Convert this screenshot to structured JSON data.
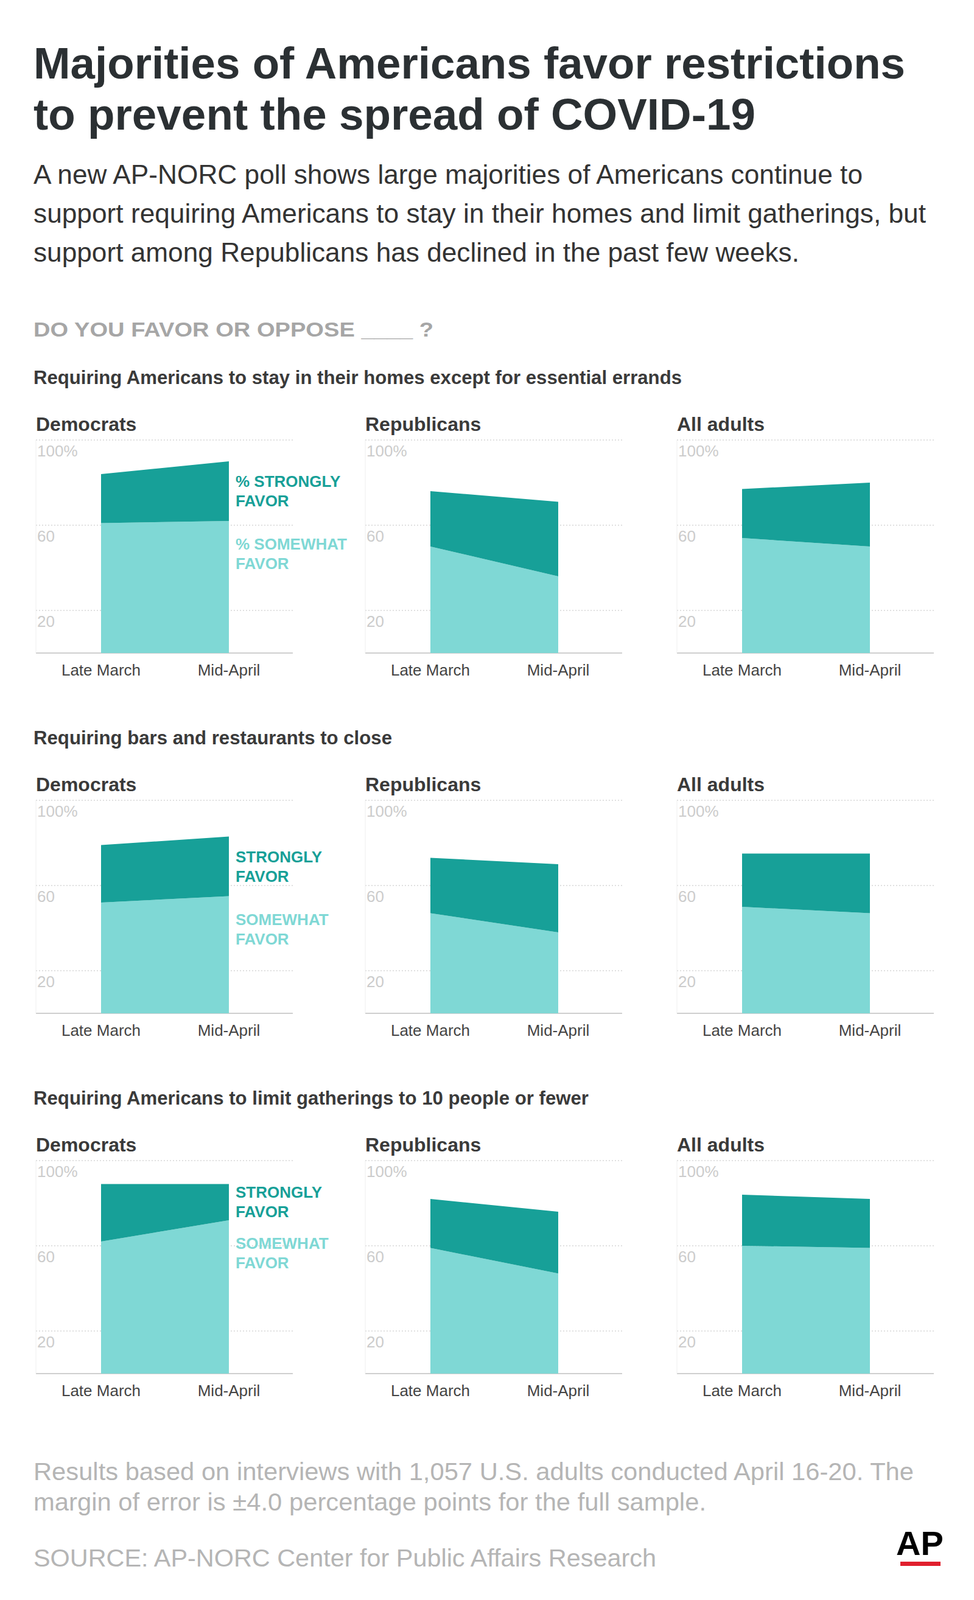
{
  "title": [
    "Majorities of Americans favor restrictions",
    "to prevent the spread of COVID-19"
  ],
  "subtitle": [
    "A new AP-NORC poll shows large majorities of Americans continue to",
    "support requiring Americans to stay in their homes and limit gatherings, but",
    "support among Republicans has declined in the past few weeks."
  ],
  "question": "DO YOU FAVOR OR OPPOSE ____ ?",
  "sections": [
    "Requiring Americans to stay in their homes except for essential errands",
    "Requiring bars and restaurants to close",
    "Requiring Americans to limit gatherings to 10 people or fewer"
  ],
  "footnote": [
    "Results based on interviews with 1,057 U.S. adults conducted April 16-20. The",
    "margin of error is ±4.0 percentage points for the full sample."
  ],
  "source": "SOURCE: AP-NORC Center for Public Affairs Research",
  "logo": "AP",
  "chart_data": [
    {
      "type": "area",
      "stacked": true,
      "title": "Democrats",
      "categories": [
        "Late March",
        "Mid-April"
      ],
      "series": [
        {
          "name": "% SOMEWHAT FAVOR",
          "color": "#7fd8d5",
          "values": [
            61,
            62
          ]
        },
        {
          "name": "% STRONGLY FAVOR",
          "color": "#17a098",
          "values": [
            23,
            28
          ]
        }
      ],
      "ylim": [
        0,
        100
      ],
      "yticks": [
        20,
        60,
        {
          "value": 100,
          "label": "100%"
        }
      ],
      "grid": true,
      "legend": "right"
    },
    {
      "type": "area",
      "stacked": true,
      "title": "Republicans",
      "categories": [
        "Late March",
        "Mid-April"
      ],
      "series": [
        {
          "color": "#7fd8d5",
          "values": [
            50,
            36
          ]
        },
        {
          "color": "#17a098",
          "values": [
            26,
            35
          ]
        }
      ],
      "ylim": [
        0,
        100
      ],
      "yticks": [
        20,
        60,
        {
          "value": 100,
          "label": "100%"
        }
      ],
      "grid": true
    },
    {
      "type": "area",
      "stacked": true,
      "title": "All adults",
      "categories": [
        "Late March",
        "Mid-April"
      ],
      "series": [
        {
          "color": "#7fd8d5",
          "values": [
            54,
            50
          ]
        },
        {
          "color": "#17a098",
          "values": [
            23,
            30
          ]
        }
      ],
      "ylim": [
        0,
        100
      ],
      "yticks": [
        20,
        60,
        {
          "value": 100,
          "label": "100%"
        }
      ],
      "grid": true
    },
    {
      "type": "area",
      "stacked": true,
      "title": "Democrats",
      "categories": [
        "Late March",
        "Mid-April"
      ],
      "series": [
        {
          "name": "SOMEWHAT FAVOR",
          "color": "#7fd8d5",
          "values": [
            52,
            55
          ]
        },
        {
          "name": "STRONGLY FAVOR",
          "color": "#17a098",
          "values": [
            27,
            28
          ]
        }
      ],
      "ylim": [
        0,
        100
      ],
      "yticks": [
        20,
        60,
        {
          "value": 100,
          "label": "100%"
        }
      ],
      "grid": true,
      "legend": "right"
    },
    {
      "type": "area",
      "stacked": true,
      "title": "Republicans",
      "categories": [
        "Late March",
        "Mid-April"
      ],
      "series": [
        {
          "color": "#7fd8d5",
          "values": [
            47,
            38
          ]
        },
        {
          "color": "#17a098",
          "values": [
            26,
            32
          ]
        }
      ],
      "ylim": [
        0,
        100
      ],
      "yticks": [
        20,
        60,
        {
          "value": 100,
          "label": "100%"
        }
      ],
      "grid": true
    },
    {
      "type": "area",
      "stacked": true,
      "title": "All adults",
      "categories": [
        "Late March",
        "Mid-April"
      ],
      "series": [
        {
          "color": "#7fd8d5",
          "values": [
            50,
            47
          ]
        },
        {
          "color": "#17a098",
          "values": [
            25,
            28
          ]
        }
      ],
      "ylim": [
        0,
        100
      ],
      "yticks": [
        20,
        60,
        {
          "value": 100,
          "label": "100%"
        }
      ],
      "grid": true
    },
    {
      "type": "area",
      "stacked": true,
      "title": "Democrats",
      "categories": [
        "Late March",
        "Mid-April"
      ],
      "series": [
        {
          "name": "SOMEWHAT FAVOR",
          "color": "#7fd8d5",
          "values": [
            62,
            72
          ]
        },
        {
          "name": "STRONGLY FAVOR",
          "color": "#17a098",
          "values": [
            27,
            17
          ]
        }
      ],
      "ylim": [
        0,
        100
      ],
      "yticks": [
        20,
        60,
        {
          "value": 100,
          "label": "100%"
        }
      ],
      "grid": true,
      "legend": "right"
    },
    {
      "type": "area",
      "stacked": true,
      "title": "Republicans",
      "categories": [
        "Late March",
        "Mid-April"
      ],
      "series": [
        {
          "color": "#7fd8d5",
          "values": [
            59,
            47
          ]
        },
        {
          "color": "#17a098",
          "values": [
            23,
            29
          ]
        }
      ],
      "ylim": [
        0,
        100
      ],
      "yticks": [
        20,
        60,
        {
          "value": 100,
          "label": "100%"
        }
      ],
      "grid": true
    },
    {
      "type": "area",
      "stacked": true,
      "title": "All adults",
      "categories": [
        "Late March",
        "Mid-April"
      ],
      "series": [
        {
          "color": "#7fd8d5",
          "values": [
            60,
            59
          ]
        },
        {
          "color": "#17a098",
          "values": [
            24,
            23
          ]
        }
      ],
      "ylim": [
        0,
        100
      ],
      "yticks": [
        20,
        60,
        {
          "value": 100,
          "label": "100%"
        }
      ],
      "grid": true
    }
  ]
}
